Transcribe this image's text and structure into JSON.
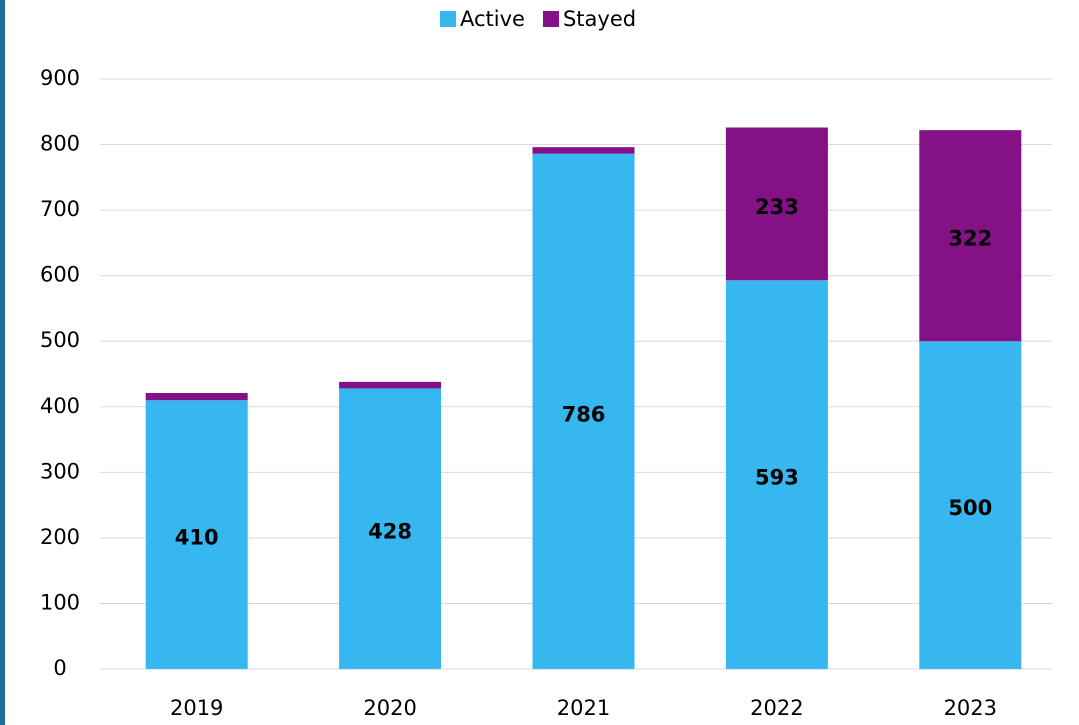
{
  "chart_data": {
    "type": "stacked_bar",
    "categories": [
      "2019",
      "2020",
      "2021",
      "2022",
      "2023"
    ],
    "series": [
      {
        "name": "Active",
        "color": "#37b7ef",
        "values": [
          410,
          428,
          786,
          593,
          500
        ]
      },
      {
        "name": "Stayed",
        "color": "#851187",
        "values": [
          11,
          10,
          10,
          233,
          322
        ],
        "value_labels": [
          null,
          null,
          null,
          "233",
          "322"
        ]
      }
    ],
    "ylim": [
      0,
      900
    ],
    "yticks": [
      0,
      100,
      200,
      300,
      400,
      500,
      600,
      700,
      800,
      900
    ],
    "grid": true,
    "legend": "top"
  }
}
